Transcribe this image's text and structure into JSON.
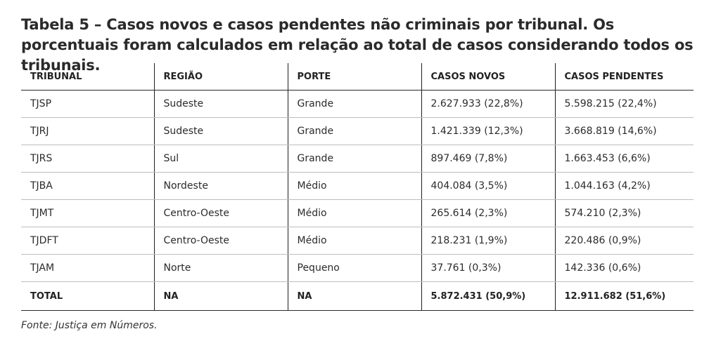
{
  "caption": "Tabela 5 – Casos novos e casos pendentes não criminais por tribunal. Os porcentuais foram calculados em relação ao total de casos considerando todos os tribunais.",
  "table": {
    "headers": [
      "TRIBUNAL",
      "REGIÃO",
      "PORTE",
      "CASOS NOVOS",
      "CASOS PENDENTES"
    ],
    "rows": [
      [
        "TJSP",
        "Sudeste",
        "Grande",
        "2.627.933 (22,8%)",
        "5.598.215 (22,4%)"
      ],
      [
        "TJRJ",
        "Sudeste",
        "Grande",
        "1.421.339 (12,3%)",
        "3.668.819 (14,6%)"
      ],
      [
        "TJRS",
        "Sul",
        "Grande",
        "897.469 (7,8%)",
        "1.663.453 (6,6%)"
      ],
      [
        "TJBA",
        "Nordeste",
        "Médio",
        "404.084 (3,5%)",
        "1.044.163 (4,2%)"
      ],
      [
        "TJMT",
        "Centro-Oeste",
        "Médio",
        "265.614 (2,3%)",
        "574.210 (2,3%)"
      ],
      [
        "TJDFT",
        "Centro-Oeste",
        "Médio",
        "218.231 (1,9%)",
        "220.486 (0,9%)"
      ],
      [
        "TJAM",
        "Norte",
        "Pequeno",
        "37.761 (0,3%)",
        "142.336 (0,6%)"
      ]
    ],
    "total": [
      "TOTAL",
      "NA",
      "NA",
      "5.872.431 (50,9%)",
      "12.911.682 (51,6%)"
    ]
  },
  "source": "Fonte: Justiça em Números."
}
